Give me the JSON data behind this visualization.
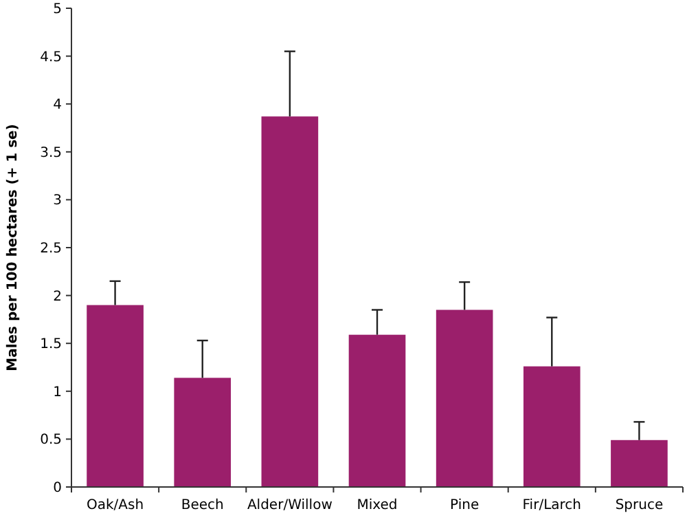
{
  "chart_data": {
    "type": "bar",
    "ylabel": "Males per 100 hectares (+ 1 se)",
    "categories": [
      "Oak/Ash",
      "Beech",
      "Alder/Willow",
      "Mixed",
      "Pine",
      "Fir/Larch",
      "Spruce"
    ],
    "values": [
      1.9,
      1.14,
      3.87,
      1.59,
      1.85,
      1.26,
      0.49
    ],
    "errors": [
      [
        1.9,
        2.15
      ],
      [
        1.14,
        1.53
      ],
      [
        3.87,
        4.55
      ],
      [
        1.59,
        1.85
      ],
      [
        1.85,
        2.14
      ],
      [
        1.26,
        1.77
      ],
      [
        0.49,
        0.68
      ]
    ],
    "color": "#9b1f6b",
    "ylim": [
      0,
      5
    ],
    "yticks": [
      0,
      0.5,
      1,
      1.5,
      2,
      2.5,
      3,
      3.5,
      4,
      4.5,
      5
    ],
    "grid": false
  }
}
